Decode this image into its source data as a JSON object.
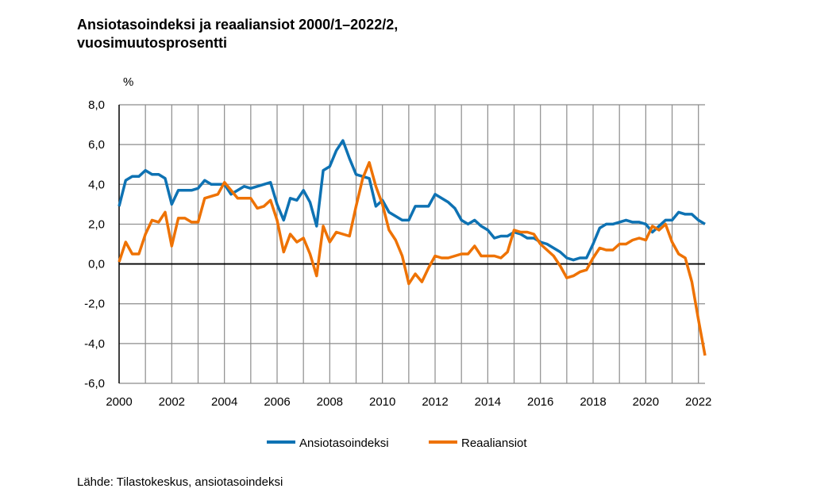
{
  "chart_data": {
    "type": "line",
    "title_lines": [
      "Ansiotasoindeksi ja reaaliansiot 2000/1–2022/2,",
      "vuosimuutosprosentti"
    ],
    "ylabel": "%",
    "xlabel": "",
    "ylim": [
      -6,
      8
    ],
    "yticks": [
      "8,0",
      "6,0",
      "4,0",
      "2,0",
      "0,0",
      "-2,0",
      "-4,0",
      "-6,0"
    ],
    "ytick_values": [
      8,
      6,
      4,
      2,
      0,
      -2,
      -4,
      -6
    ],
    "xlim": [
      2000,
      2022.25
    ],
    "xticks": [
      "2000",
      "2002",
      "2004",
      "2006",
      "2008",
      "2010",
      "2012",
      "2014",
      "2016",
      "2018",
      "2020",
      "2022"
    ],
    "grid": true,
    "legend_position": "bottom",
    "x_start": "2000/1",
    "frequency": "quarterly",
    "series": [
      {
        "name": "Ansiotasoindeksi",
        "color": "#0e72b3",
        "values": [
          2.9,
          4.2,
          4.4,
          4.4,
          4.7,
          4.5,
          4.5,
          4.3,
          3.0,
          3.7,
          3.7,
          3.7,
          3.8,
          4.2,
          4.0,
          4.0,
          4.0,
          3.5,
          3.7,
          3.9,
          3.8,
          3.9,
          4.0,
          4.1,
          3.0,
          2.2,
          3.3,
          3.2,
          3.7,
          3.1,
          1.9,
          4.7,
          4.9,
          5.7,
          6.2,
          5.3,
          4.5,
          4.4,
          4.3,
          2.9,
          3.2,
          2.6,
          2.4,
          2.2,
          2.2,
          2.9,
          2.9,
          2.9,
          3.5,
          3.3,
          3.1,
          2.8,
          2.2,
          2.0,
          2.2,
          1.9,
          1.7,
          1.3,
          1.4,
          1.4,
          1.6,
          1.5,
          1.3,
          1.3,
          1.1,
          1.0,
          0.8,
          0.6,
          0.3,
          0.2,
          0.3,
          0.3,
          1.0,
          1.8,
          2.0,
          2.0,
          2.1,
          2.2,
          2.1,
          2.1,
          2.0,
          1.6,
          1.9,
          2.2,
          2.2,
          2.6,
          2.5,
          2.5,
          2.2,
          2.0
        ]
      },
      {
        "name": "Reaaliansiot",
        "color": "#ee7203",
        "values": [
          0.1,
          1.1,
          0.5,
          0.5,
          1.5,
          2.2,
          2.1,
          2.6,
          0.9,
          2.3,
          2.3,
          2.1,
          2.1,
          3.3,
          3.4,
          3.5,
          4.1,
          3.7,
          3.3,
          3.3,
          3.3,
          2.8,
          2.9,
          3.2,
          2.2,
          0.6,
          1.5,
          1.1,
          1.3,
          0.5,
          -0.6,
          1.9,
          1.1,
          1.6,
          1.5,
          1.4,
          2.9,
          4.3,
          5.1,
          3.9,
          3.0,
          1.7,
          1.2,
          0.4,
          -1.0,
          -0.5,
          -0.9,
          -0.2,
          0.4,
          0.3,
          0.3,
          0.4,
          0.5,
          0.5,
          0.9,
          0.4,
          0.4,
          0.4,
          0.3,
          0.6,
          1.7,
          1.6,
          1.6,
          1.5,
          1.0,
          0.7,
          0.4,
          -0.1,
          -0.7,
          -0.6,
          -0.4,
          -0.3,
          0.3,
          0.8,
          0.7,
          0.7,
          1.0,
          1.0,
          1.2,
          1.3,
          1.2,
          1.9,
          1.7,
          2.0,
          1.1,
          0.5,
          0.3,
          -0.9,
          -2.8,
          -4.6
        ]
      }
    ],
    "source": "Lähde: Tilastokeskus, ansiotasoindeksi"
  }
}
